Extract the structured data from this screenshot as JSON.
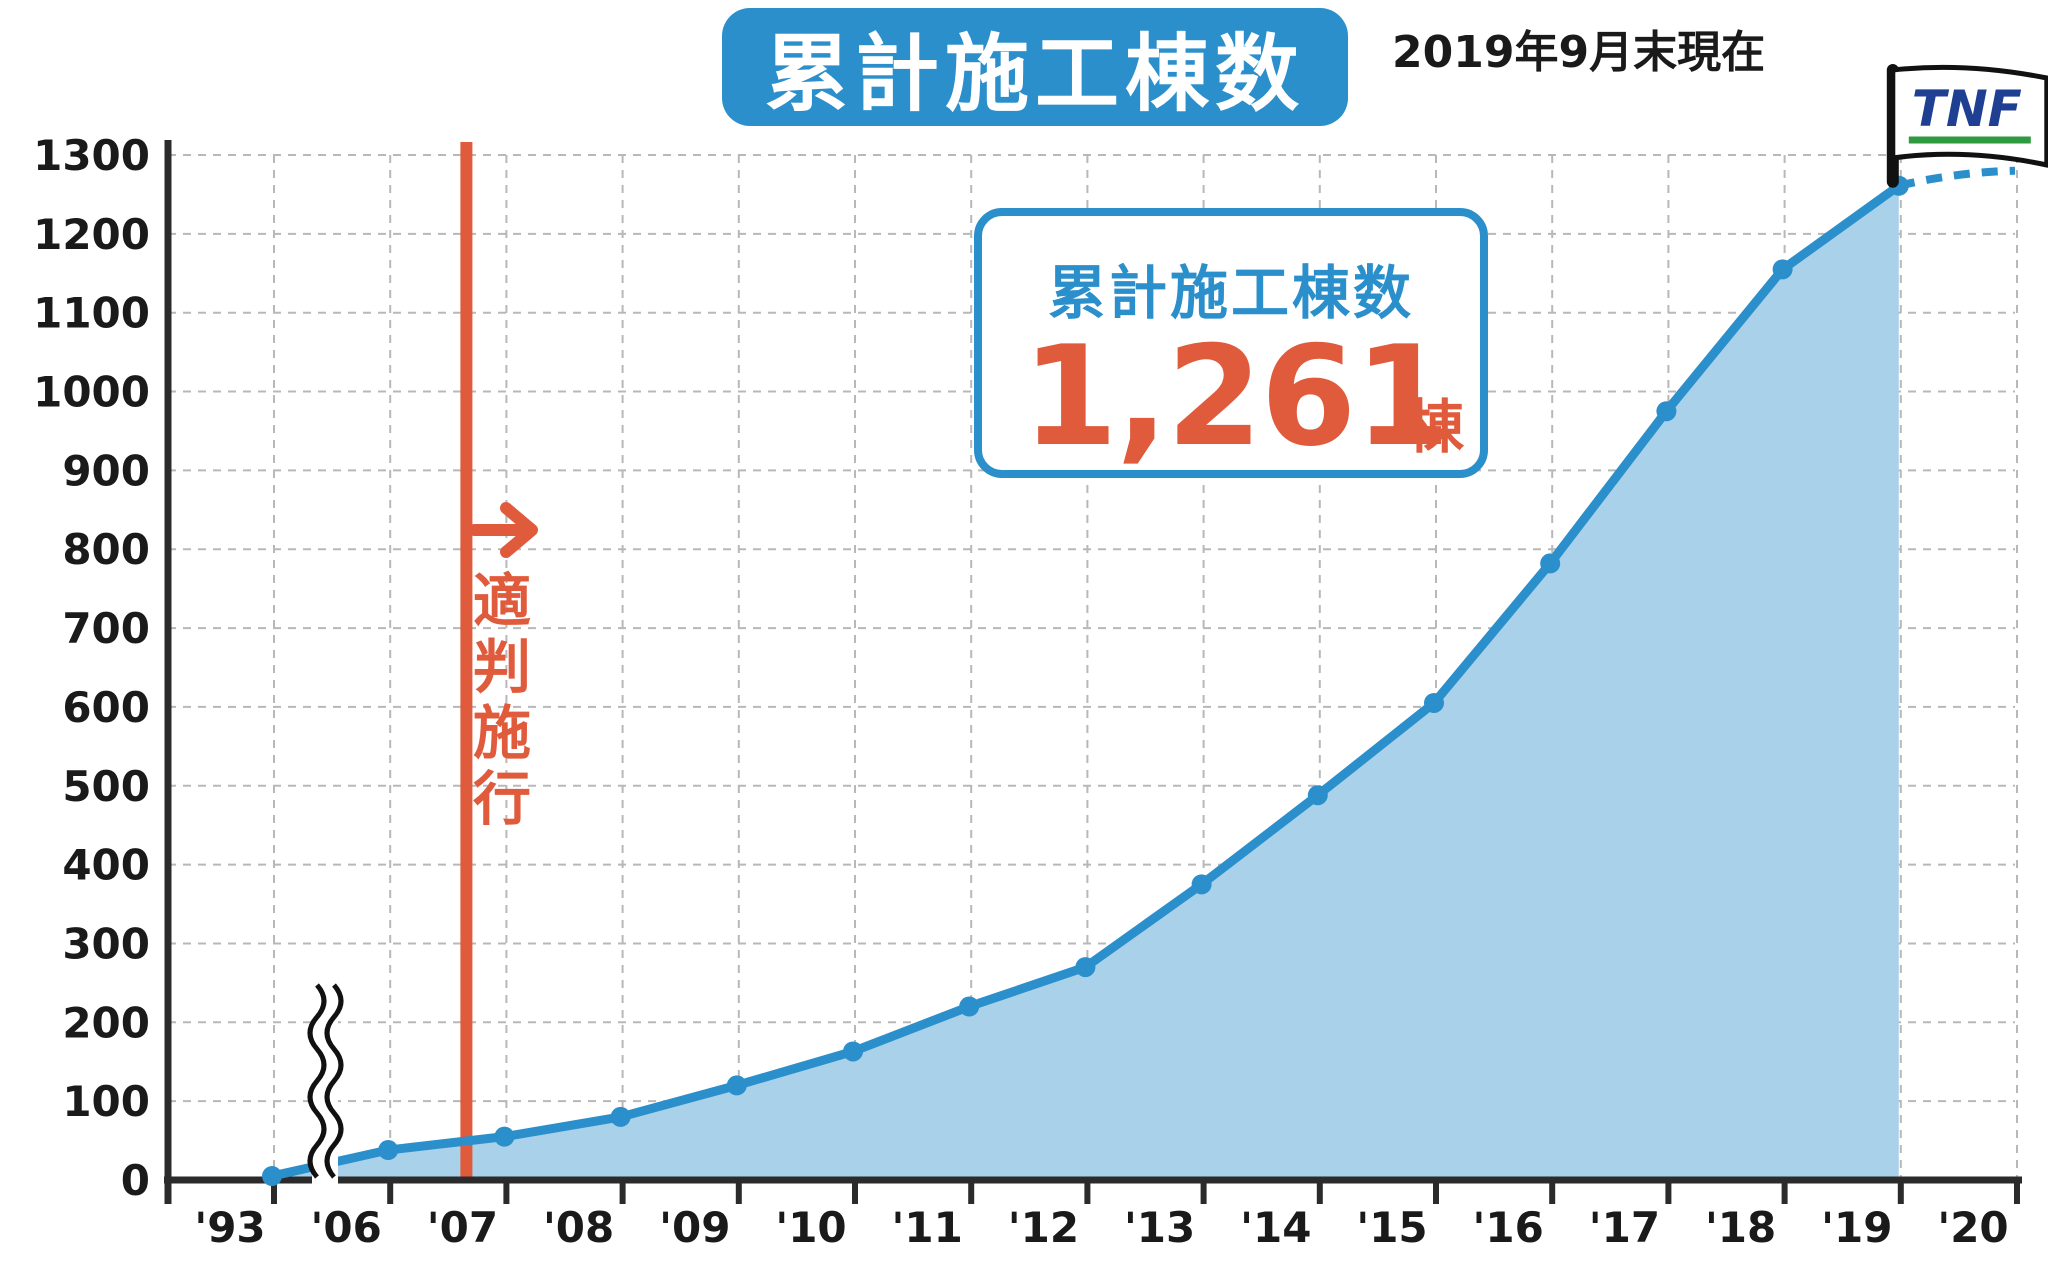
{
  "header": {
    "title": "累計施工棟数",
    "as_of": "2019年9月末現在"
  },
  "callout": {
    "title": "累計施工棟数",
    "value": "1,261",
    "unit": "棟"
  },
  "annotation": {
    "law_label_chars": [
      "適",
      "判",
      "施",
      "行"
    ],
    "law_year": "'07"
  },
  "logo": {
    "text": "TNF"
  },
  "colors": {
    "line": "#2a8fcb",
    "area": "#a9d1ea",
    "accent": "#e05a3c",
    "axis": "#2b2b2b",
    "grid": "#b8b8b8"
  },
  "chart_data": {
    "type": "area",
    "title": "累計施工棟数",
    "xlabel": "",
    "ylabel": "",
    "ylim": [
      0,
      1300
    ],
    "yticks": [
      0,
      100,
      200,
      300,
      400,
      500,
      600,
      700,
      800,
      900,
      1000,
      1100,
      1200,
      1300
    ],
    "x_tick_labels": [
      "'93",
      "'06",
      "'07",
      "'08",
      "'09",
      "'10",
      "'11",
      "'12",
      "'13",
      "'14",
      "'15",
      "'16",
      "'17",
      "'18",
      "'19",
      "'20"
    ],
    "axis_break_after": "'93",
    "grid": true,
    "series": [
      {
        "name": "",
        "points": [
          {
            "x": "'93",
            "y": 5
          },
          {
            "x": "'06",
            "y": 38
          },
          {
            "x": "'07",
            "y": 55
          },
          {
            "x": "'08",
            "y": 80
          },
          {
            "x": "'09",
            "y": 120
          },
          {
            "x": "'10",
            "y": 163
          },
          {
            "x": "'11",
            "y": 220
          },
          {
            "x": "'12",
            "y": 270
          },
          {
            "x": "'13",
            "y": 375
          },
          {
            "x": "'14",
            "y": 488
          },
          {
            "x": "'15",
            "y": 605
          },
          {
            "x": "'16",
            "y": 782
          },
          {
            "x": "'17",
            "y": 975
          },
          {
            "x": "'18",
            "y": 1155
          },
          {
            "x": "'19",
            "y": 1261
          }
        ]
      }
    ],
    "projection": {
      "from": {
        "x": "'19",
        "y": 1261
      },
      "to": {
        "x": "'20",
        "y": 1280
      },
      "style": "dashed"
    },
    "vertical_marker": {
      "x": "'07",
      "color": "#e05a3c"
    }
  }
}
